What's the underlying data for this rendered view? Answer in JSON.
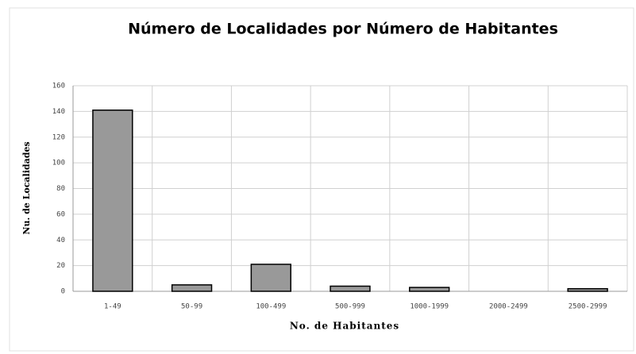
{
  "chart_data": {
    "type": "bar",
    "title": "Número de Localidades por Número de Habitantes",
    "x_label": "No. de Habitantes",
    "y_label": "Nu. de Localidades",
    "categories": [
      "1-49",
      "50-99",
      "100-499",
      "500-999",
      "1000-1999",
      "2000-2499",
      "2500-2999"
    ],
    "values": [
      141,
      5,
      21,
      4,
      3,
      0,
      2
    ],
    "color": "#999999",
    "ylim": [
      0,
      160
    ],
    "yticks": [
      0,
      20,
      40,
      60,
      80,
      100,
      120,
      140,
      160
    ],
    "grid": true
  }
}
